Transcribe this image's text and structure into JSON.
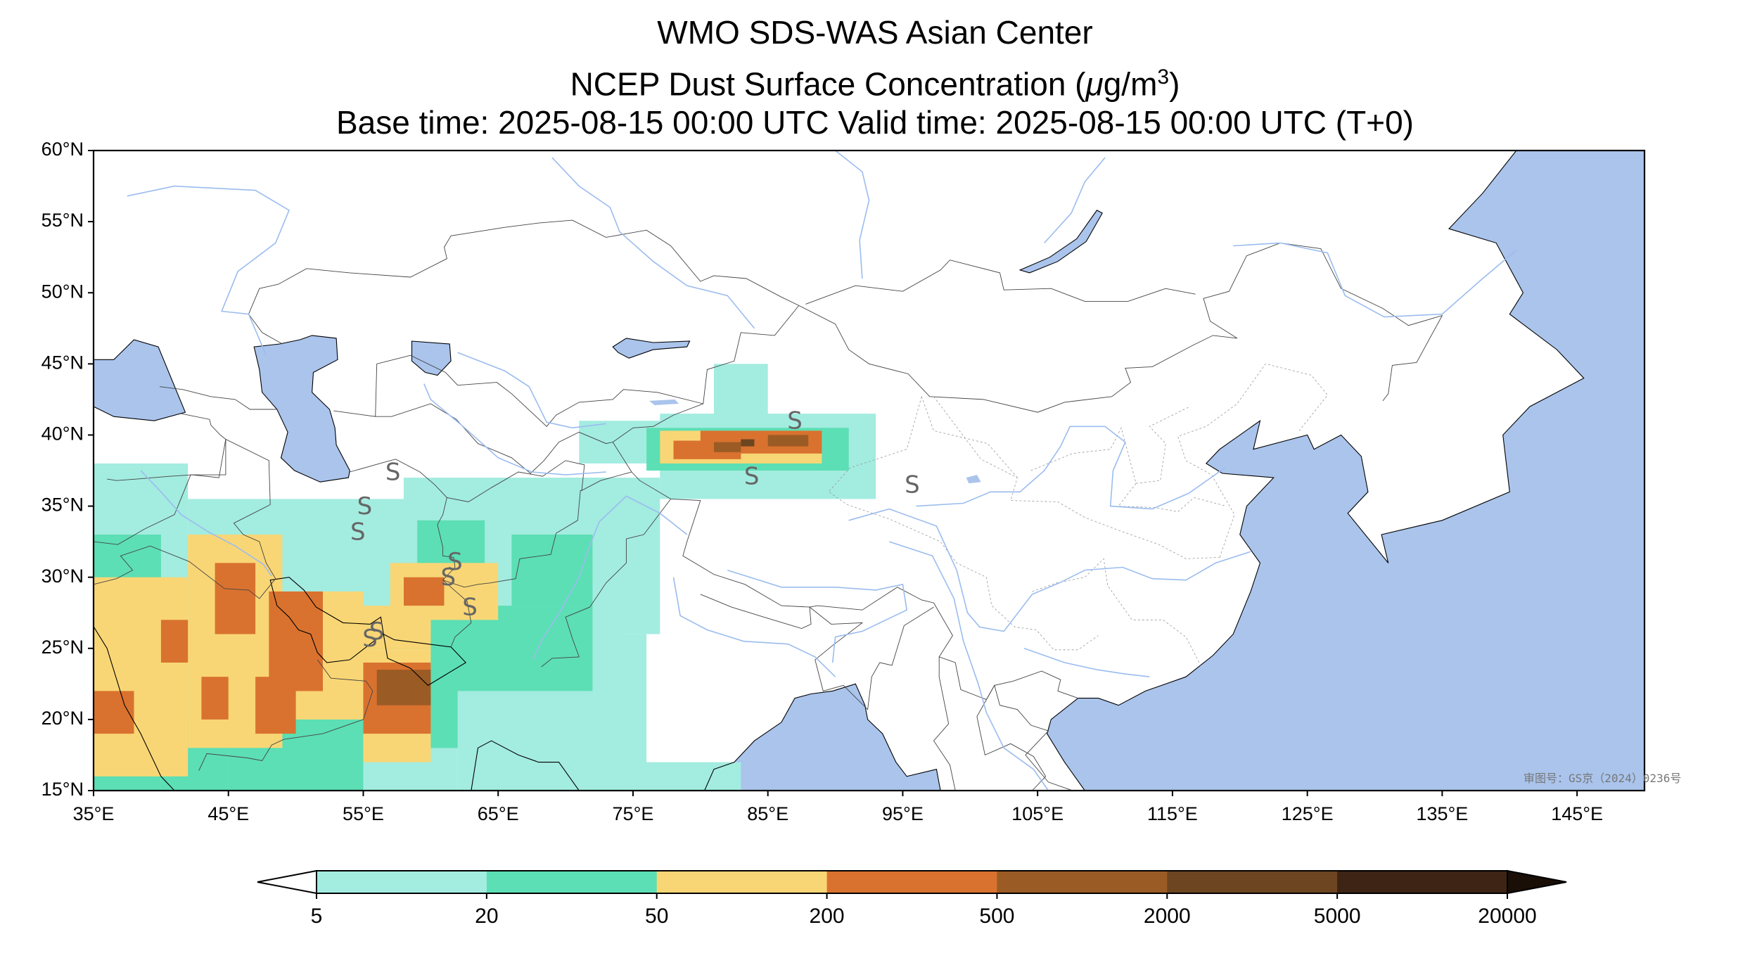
{
  "titles": {
    "line1": "WMO SDS-WAS Asian Center",
    "line2_prefix": "NCEP Dust Surface Concentration (",
    "line2_mu": "μ",
    "line2_unit": "g/m",
    "line2_sup": "3",
    "line2_suffix": ")",
    "line3": "Base time: 2025-08-15 00:00 UTC Valid time: 2025-08-15 00:00 UTC (T+0)"
  },
  "map": {
    "extent": {
      "lon": [
        35,
        150
      ],
      "lat": [
        15,
        60
      ]
    },
    "lat_ticks": [
      {
        "v": 60,
        "label": "60°N"
      },
      {
        "v": 55,
        "label": "55°N"
      },
      {
        "v": 50,
        "label": "50°N"
      },
      {
        "v": 45,
        "label": "45°N"
      },
      {
        "v": 40,
        "label": "40°N"
      },
      {
        "v": 35,
        "label": "35°N"
      },
      {
        "v": 30,
        "label": "30°N"
      },
      {
        "v": 25,
        "label": "25°N"
      },
      {
        "v": 20,
        "label": "20°N"
      },
      {
        "v": 15,
        "label": "15°N"
      }
    ],
    "lon_ticks": [
      {
        "v": 35,
        "label": "35°E"
      },
      {
        "v": 45,
        "label": "45°E"
      },
      {
        "v": 55,
        "label": "55°E"
      },
      {
        "v": 65,
        "label": "65°E"
      },
      {
        "v": 75,
        "label": "75°E"
      },
      {
        "v": 85,
        "label": "85°E"
      },
      {
        "v": 95,
        "label": "95°E"
      },
      {
        "v": 105,
        "label": "105°E"
      },
      {
        "v": 115,
        "label": "115°E"
      },
      {
        "v": 125,
        "label": "125°E"
      },
      {
        "v": 135,
        "label": "135°E"
      },
      {
        "v": 145,
        "label": "145°E"
      }
    ],
    "watermark": "审图号：GS京（2024）0236号",
    "ocean_color": "#aac4ec",
    "dust_station_marker": "S",
    "dust_stations": [
      [
        57.2,
        37.3
      ],
      [
        55.1,
        34.9
      ],
      [
        54.6,
        33.1
      ],
      [
        61.3,
        29.9
      ],
      [
        61.8,
        31.0
      ],
      [
        62.9,
        27.8
      ],
      [
        55.5,
        25.6
      ],
      [
        56.0,
        26.1
      ],
      [
        83.8,
        37.0
      ],
      [
        87.0,
        40.9
      ],
      [
        95.7,
        36.4
      ]
    ]
  },
  "colorbar": {
    "boundaries": [
      "5",
      "20",
      "50",
      "200",
      "500",
      "2000",
      "5000",
      "20000"
    ],
    "colors": [
      "#a3ece0",
      "#5cdfb4",
      "#f9d675",
      "#d9722f",
      "#9b5b25",
      "#6d4521",
      "#3d2414"
    ],
    "under_color": "#ffffff",
    "over_color": "#1a0f07"
  },
  "dust_field": [
    {
      "level": 0,
      "lon": [
        35,
        42
      ],
      "lat": [
        15,
        38
      ]
    },
    {
      "level": 0,
      "lon": [
        42,
        62
      ],
      "lat": [
        15,
        35.5
      ]
    },
    {
      "level": 0,
      "lon": [
        58,
        74
      ],
      "lat": [
        23,
        37
      ]
    },
    {
      "level": 0,
      "lon": [
        62,
        76
      ],
      "lat": [
        15,
        26
      ]
    },
    {
      "level": 0,
      "lon": [
        70,
        77
      ],
      "lat": [
        26,
        37
      ]
    },
    {
      "level": 0,
      "lon": [
        71,
        80
      ],
      "lat": [
        38,
        41
      ]
    },
    {
      "level": 0,
      "lon": [
        77,
        93
      ],
      "lat": [
        35.5,
        41.5
      ]
    },
    {
      "level": 0,
      "lon": [
        81,
        85
      ],
      "lat": [
        41,
        45
      ]
    },
    {
      "level": 0,
      "lon": [
        75,
        83
      ],
      "lat": [
        15,
        17
      ]
    },
    {
      "level": 1,
      "lon": [
        35,
        40
      ],
      "lat": [
        15,
        33
      ]
    },
    {
      "level": 1,
      "lon": [
        40,
        45
      ],
      "lat": [
        15,
        20
      ]
    },
    {
      "level": 1,
      "lon": [
        45,
        55
      ],
      "lat": [
        15,
        22
      ]
    },
    {
      "level": 1,
      "lon": [
        55,
        62
      ],
      "lat": [
        18,
        26
      ]
    },
    {
      "level": 1,
      "lon": [
        60,
        72
      ],
      "lat": [
        22,
        28
      ]
    },
    {
      "level": 1,
      "lon": [
        66,
        72
      ],
      "lat": [
        28,
        33
      ]
    },
    {
      "level": 1,
      "lon": [
        59,
        64
      ],
      "lat": [
        31,
        34
      ]
    },
    {
      "level": 1,
      "lon": [
        76,
        91
      ],
      "lat": [
        37.5,
        40.5
      ]
    },
    {
      "level": 2,
      "lon": [
        35,
        42
      ],
      "lat": [
        16,
        30
      ]
    },
    {
      "level": 2,
      "lon": [
        42,
        49
      ],
      "lat": [
        18,
        33
      ]
    },
    {
      "level": 2,
      "lon": [
        49,
        55
      ],
      "lat": [
        20,
        29
      ]
    },
    {
      "level": 2,
      "lon": [
        55,
        60
      ],
      "lat": [
        17,
        25
      ]
    },
    {
      "level": 2,
      "lon": [
        52,
        60
      ],
      "lat": [
        25,
        28
      ]
    },
    {
      "level": 2,
      "lon": [
        57,
        63
      ],
      "lat": [
        27,
        31
      ]
    },
    {
      "level": 2,
      "lon": [
        62,
        65
      ],
      "lat": [
        27,
        31
      ]
    },
    {
      "level": 2,
      "lon": [
        77,
        89
      ],
      "lat": [
        38,
        40.3
      ]
    },
    {
      "level": 3,
      "lon": [
        40,
        42
      ],
      "lat": [
        24,
        27
      ]
    },
    {
      "level": 3,
      "lon": [
        43,
        45
      ],
      "lat": [
        20,
        23
      ]
    },
    {
      "level": 3,
      "lon": [
        44,
        47
      ],
      "lat": [
        26,
        31
      ]
    },
    {
      "level": 3,
      "lon": [
        47,
        50
      ],
      "lat": [
        19,
        23
      ]
    },
    {
      "level": 3,
      "lon": [
        48,
        52
      ],
      "lat": [
        22,
        29
      ]
    },
    {
      "level": 3,
      "lon": [
        35,
        38
      ],
      "lat": [
        19,
        22
      ]
    },
    {
      "level": 3,
      "lon": [
        55,
        60
      ],
      "lat": [
        19,
        24
      ]
    },
    {
      "level": 3,
      "lon": [
        58,
        61
      ],
      "lat": [
        28,
        30
      ]
    },
    {
      "level": 3,
      "lon": [
        78,
        83
      ],
      "lat": [
        38.3,
        39.6
      ]
    },
    {
      "level": 3,
      "lon": [
        80,
        89
      ],
      "lat": [
        38.7,
        40.3
      ]
    },
    {
      "level": 4,
      "lon": [
        56,
        60
      ],
      "lat": [
        21,
        23.5
      ]
    },
    {
      "level": 4,
      "lon": [
        81,
        83
      ],
      "lat": [
        38.8,
        39.5
      ]
    },
    {
      "level": 4,
      "lon": [
        85,
        88
      ],
      "lat": [
        39.2,
        40
      ]
    },
    {
      "level": 5,
      "lon": [
        83,
        84
      ],
      "lat": [
        39.2,
        39.7
      ]
    }
  ]
}
